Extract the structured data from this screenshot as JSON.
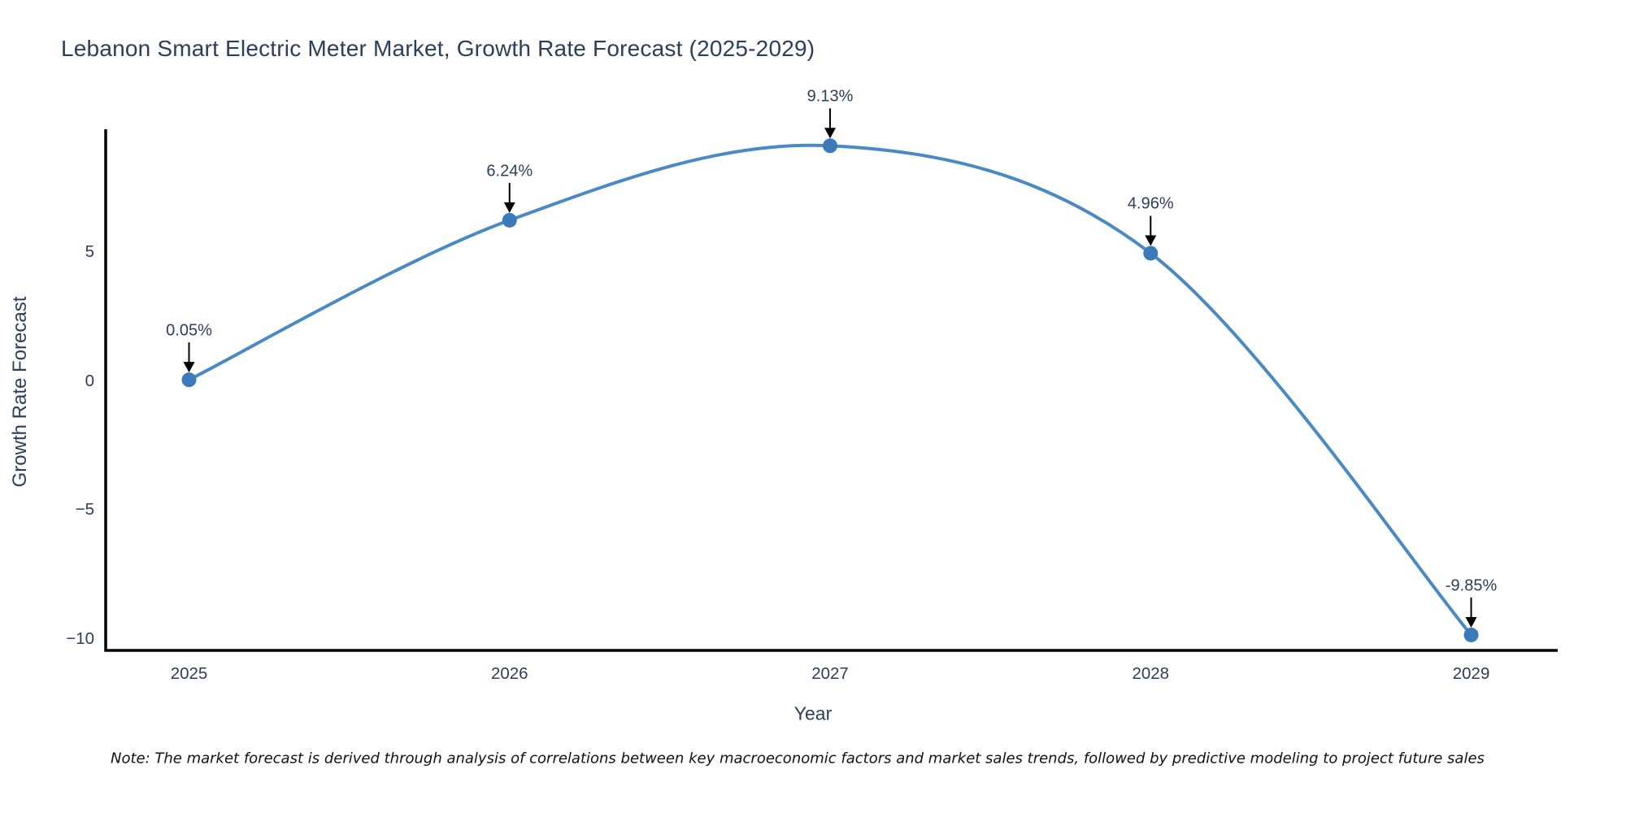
{
  "note": "Note: The market forecast is derived through analysis of correlations between key macroeconomic factors and market sales trends, followed by predictive modeling to project future sales",
  "chart_data": {
    "type": "line",
    "title": "Lebanon Smart Electric Meter Market, Growth Rate Forecast (2025-2029)",
    "xlabel": "Year",
    "ylabel": "Growth Rate Forecast",
    "x": [
      2025,
      2026,
      2027,
      2028,
      2029
    ],
    "values": [
      0.05,
      6.24,
      9.13,
      4.96,
      -9.85
    ],
    "point_labels": [
      "0.05%",
      "6.24%",
      "9.13%",
      "4.96%",
      "-9.85%"
    ],
    "xtick_labels": [
      "2025",
      "2026",
      "2027",
      "2028",
      "2029"
    ],
    "yticks": [
      5,
      0,
      -5,
      -10
    ],
    "ytick_labels": [
      "5",
      "0",
      "−5",
      "−10"
    ],
    "xlim": [
      2024.74,
      2029.27
    ],
    "ylim": [
      -10.45,
      9.77
    ],
    "grid": false,
    "legend": "none",
    "line_shape": "spline",
    "colors": {
      "line": "#4a8ac4",
      "marker": "#3b7ab8",
      "axis": "#000000",
      "text": "#2b3e5c",
      "annotation_arrow": "#000000"
    }
  }
}
